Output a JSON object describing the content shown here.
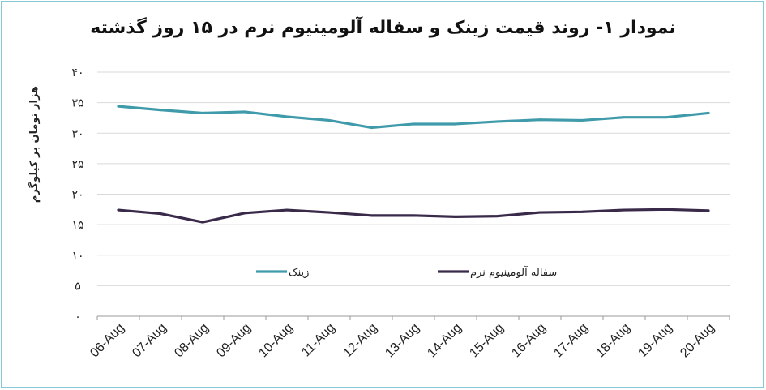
{
  "chart_data": {
    "type": "line",
    "title": "نمودار ۱- روند قیمت زینک و سفاله آلومینیوم نرم در ۱۵ روز گذشته",
    "ylabel": "هزار تومان بر کیلوگرم",
    "xlabel": "",
    "ylim": [
      0,
      40
    ],
    "yticks": [
      0,
      5,
      10,
      15,
      20,
      25,
      30,
      35,
      40
    ],
    "ytick_labels": [
      "۰",
      "۵",
      "۱۰",
      "۱۵",
      "۲۰",
      "۲۵",
      "۳۰",
      "۳۵",
      "۴۰"
    ],
    "categories": [
      "06-Aug",
      "07-Aug",
      "08-Aug",
      "09-Aug",
      "10-Aug",
      "11-Aug",
      "12-Aug",
      "13-Aug",
      "14-Aug",
      "15-Aug",
      "16-Aug",
      "17-Aug",
      "18-Aug",
      "19-Aug",
      "20-Aug"
    ],
    "grid": true,
    "legend_position": "bottom-inside",
    "series": [
      {
        "name": "زینک",
        "color": "#3f9aaa",
        "values": [
          34.4,
          33.8,
          33.3,
          33.5,
          32.7,
          32.1,
          30.9,
          31.5,
          31.5,
          31.9,
          32.2,
          32.1,
          32.6,
          32.6,
          33.3
        ]
      },
      {
        "name": "سفاله آلومینیوم نرم",
        "color": "#3a2a4a",
        "values": [
          17.4,
          16.8,
          15.4,
          16.9,
          17.4,
          17.0,
          16.5,
          16.5,
          16.3,
          16.4,
          17.0,
          17.1,
          17.4,
          17.5,
          17.3
        ]
      }
    ]
  }
}
